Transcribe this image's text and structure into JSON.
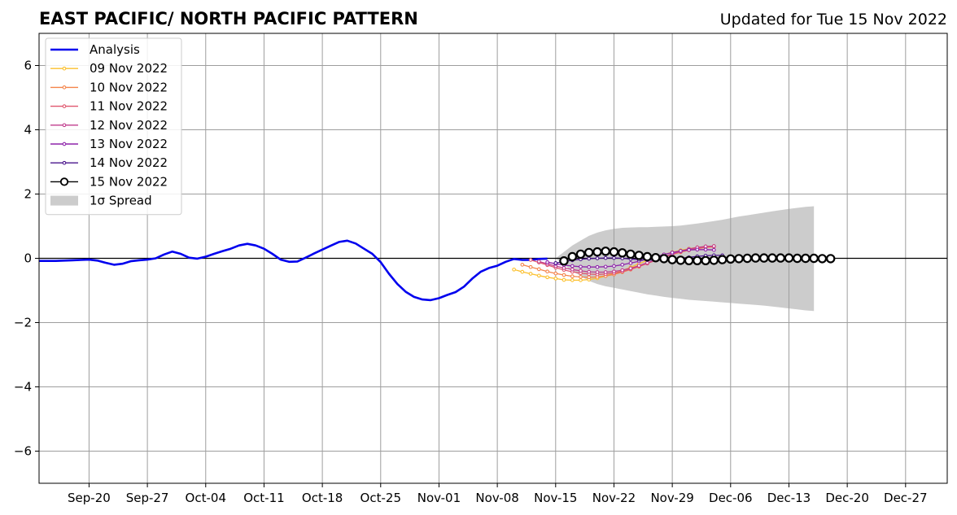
{
  "chart_data": {
    "type": "line",
    "title": "EAST PACIFIC/ NORTH PACIFIC PATTERN",
    "subtitle": "Updated for Tue 15 Nov 2022",
    "xlabel": "",
    "ylabel": "",
    "x_range": [
      "2022-09-14",
      "2023-01-01"
    ],
    "ylim": [
      -7,
      7
    ],
    "grid": true,
    "legend_position": "upper-left",
    "x_ticks": [
      {
        "date": "2022-09-20",
        "label": "Sep-20"
      },
      {
        "date": "2022-09-27",
        "label": "Sep-27"
      },
      {
        "date": "2022-10-04",
        "label": "Oct-04"
      },
      {
        "date": "2022-10-11",
        "label": "Oct-11"
      },
      {
        "date": "2022-10-18",
        "label": "Oct-18"
      },
      {
        "date": "2022-10-25",
        "label": "Oct-25"
      },
      {
        "date": "2022-11-01",
        "label": "Nov-01"
      },
      {
        "date": "2022-11-08",
        "label": "Nov-08"
      },
      {
        "date": "2022-11-15",
        "label": "Nov-15"
      },
      {
        "date": "2022-11-22",
        "label": "Nov-22"
      },
      {
        "date": "2022-11-29",
        "label": "Nov-29"
      },
      {
        "date": "2022-12-06",
        "label": "Dec-06"
      },
      {
        "date": "2022-12-13",
        "label": "Dec-13"
      },
      {
        "date": "2022-12-20",
        "label": "Dec-20"
      },
      {
        "date": "2022-12-27",
        "label": "Dec-27"
      }
    ],
    "y_ticks": [
      {
        "value": 6,
        "label": "6"
      },
      {
        "value": 4,
        "label": "4"
      },
      {
        "value": 2,
        "label": "2"
      },
      {
        "value": 0,
        "label": "0"
      },
      {
        "value": -2,
        "label": "−2"
      },
      {
        "value": -4,
        "label": "−4"
      },
      {
        "value": -6,
        "label": "−6"
      }
    ],
    "spread": {
      "name": "1σ Spread",
      "color": "#cccccc",
      "start": "2022-11-15",
      "upper": [
        0.0,
        0.2,
        0.4,
        0.55,
        0.7,
        0.8,
        0.87,
        0.92,
        0.95,
        0.96,
        0.97,
        0.97,
        0.98,
        0.99,
        1.0,
        1.02,
        1.05,
        1.08,
        1.12,
        1.16,
        1.2,
        1.25,
        1.3,
        1.34,
        1.38,
        1.42,
        1.46,
        1.5,
        1.54,
        1.57,
        1.6,
        1.62
      ],
      "lower": [
        0.0,
        -0.2,
        -0.4,
        -0.55,
        -0.7,
        -0.8,
        -0.87,
        -0.92,
        -0.97,
        -1.02,
        -1.07,
        -1.12,
        -1.16,
        -1.2,
        -1.23,
        -1.26,
        -1.29,
        -1.31,
        -1.33,
        -1.35,
        -1.37,
        -1.39,
        -1.41,
        -1.43,
        -1.45,
        -1.47,
        -1.5,
        -1.53,
        -1.56,
        -1.59,
        -1.62,
        -1.64
      ]
    },
    "series": [
      {
        "name": "Analysis",
        "color": "#0000ee",
        "start": "2022-09-14",
        "values": [
          -0.08,
          -0.08,
          -0.08,
          -0.07,
          -0.06,
          -0.05,
          -0.04,
          -0.07,
          -0.14,
          -0.2,
          -0.17,
          -0.09,
          -0.06,
          -0.04,
          0.0,
          0.12,
          0.21,
          0.14,
          0.02,
          -0.01,
          0.05,
          0.14,
          0.22,
          0.3,
          0.4,
          0.45,
          0.4,
          0.3,
          0.14,
          -0.04,
          -0.11,
          -0.1,
          0.02,
          0.15,
          0.27,
          0.39,
          0.51,
          0.55,
          0.46,
          0.3,
          0.14,
          -0.12,
          -0.48,
          -0.8,
          -1.04,
          -1.2,
          -1.28,
          -1.3,
          -1.24,
          -1.14,
          -1.05,
          -0.88,
          -0.63,
          -0.42,
          -0.3,
          -0.23,
          -0.11,
          -0.02,
          -0.05,
          -0.05,
          -0.02,
          -0.01
        ]
      },
      {
        "name": "09 Nov 2022",
        "color": "#fbc02d",
        "start": "2022-11-10",
        "values": [
          -0.35,
          -0.42,
          -0.48,
          -0.54,
          -0.59,
          -0.63,
          -0.67,
          -0.68,
          -0.68,
          -0.66,
          -0.62,
          -0.55,
          -0.47,
          -0.38,
          -0.28,
          -0.17,
          -0.06,
          0.04,
          0.12,
          0.19,
          0.25,
          0.3,
          0.34,
          0.37,
          0.38
        ]
      },
      {
        "name": "10 Nov 2022",
        "color": "#f4844a",
        "start": "2022-11-11",
        "values": [
          -0.2,
          -0.27,
          -0.34,
          -0.41,
          -0.47,
          -0.52,
          -0.56,
          -0.58,
          -0.59,
          -0.58,
          -0.55,
          -0.5,
          -0.43,
          -0.35,
          -0.26,
          -0.16,
          -0.06,
          0.04,
          0.12,
          0.19,
          0.25,
          0.3,
          0.34,
          0.36
        ]
      },
      {
        "name": "11 Nov 2022",
        "color": "#e0576e",
        "start": "2022-11-12",
        "values": [
          -0.05,
          -0.13,
          -0.21,
          -0.29,
          -0.36,
          -0.42,
          -0.46,
          -0.49,
          -0.5,
          -0.49,
          -0.46,
          -0.41,
          -0.34,
          -0.25,
          -0.16,
          -0.06,
          0.04,
          0.13,
          0.2,
          0.26,
          0.31,
          0.35,
          0.37
        ]
      },
      {
        "name": "12 Nov 2022",
        "color": "#c13e8e",
        "start": "2022-11-13",
        "values": [
          -0.1,
          -0.17,
          -0.24,
          -0.3,
          -0.35,
          -0.39,
          -0.42,
          -0.43,
          -0.43,
          -0.41,
          -0.37,
          -0.31,
          -0.23,
          -0.14,
          -0.05,
          0.05,
          0.14,
          0.22,
          0.29,
          0.34,
          0.37,
          0.38
        ]
      },
      {
        "name": "13 Nov 2022",
        "color": "#8e24aa",
        "start": "2022-11-14",
        "values": [
          -0.12,
          -0.17,
          -0.21,
          -0.24,
          -0.26,
          -0.27,
          -0.27,
          -0.26,
          -0.24,
          -0.2,
          -0.15,
          -0.09,
          -0.02,
          0.05,
          0.12,
          0.18,
          0.23,
          0.26,
          0.27,
          0.27,
          0.26
        ]
      },
      {
        "name": "14 Nov 2022",
        "color": "#4a148c",
        "start": "2022-11-15",
        "values": [
          -0.15,
          -0.1,
          -0.06,
          -0.03,
          -0.01,
          0.0,
          0.01,
          0.01,
          0.0,
          -0.02,
          -0.04,
          -0.05,
          -0.06,
          -0.05,
          -0.03,
          0.0,
          0.03,
          0.06,
          0.08,
          0.09,
          0.09
        ]
      },
      {
        "name": "15 Nov 2022",
        "color": "#000000",
        "start": "2022-11-16",
        "values": [
          -0.08,
          0.05,
          0.13,
          0.18,
          0.2,
          0.22,
          0.2,
          0.17,
          0.13,
          0.09,
          0.05,
          0.02,
          -0.01,
          -0.04,
          -0.06,
          -0.07,
          -0.07,
          -0.07,
          -0.06,
          -0.04,
          -0.02,
          -0.01,
          0.0,
          0.01,
          0.01,
          0.01,
          0.01,
          0.01,
          0.0,
          0.0,
          0.0,
          -0.01,
          -0.01
        ]
      }
    ]
  }
}
